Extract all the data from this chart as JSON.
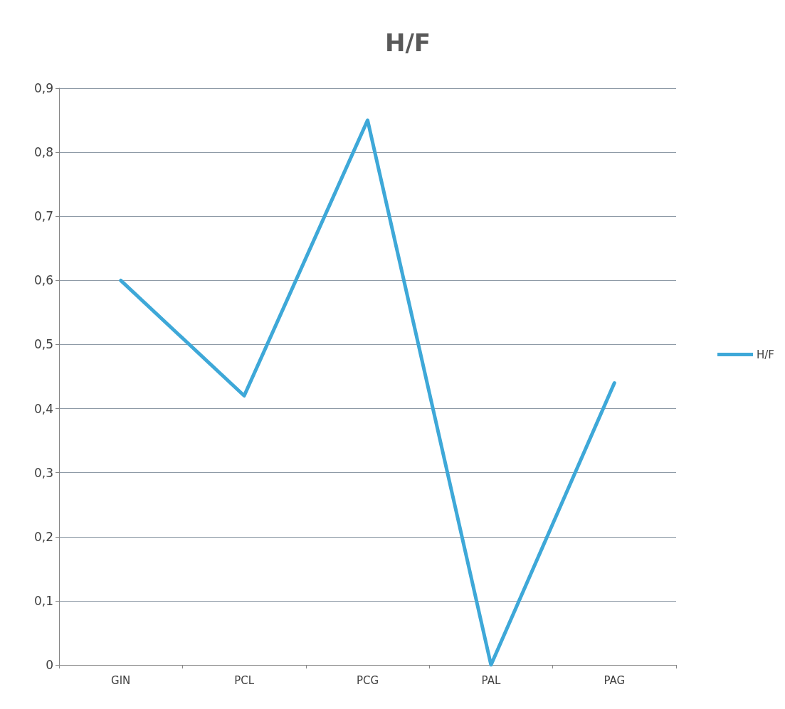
{
  "chart_data": {
    "type": "line",
    "title": "H/F",
    "categories": [
      "GIN",
      "PCL",
      "PCG",
      "PAL",
      "PAG"
    ],
    "series": [
      {
        "name": "H/F",
        "color": "#3ea8d8",
        "values": [
          0.6,
          0.42,
          0.85,
          0,
          0.44
        ]
      }
    ],
    "ylim": [
      0,
      0.9
    ],
    "yticks": [
      {
        "value": 0,
        "label": "0"
      },
      {
        "value": 0.1,
        "label": "0,1"
      },
      {
        "value": 0.2,
        "label": "0,2"
      },
      {
        "value": 0.3,
        "label": "0,3"
      },
      {
        "value": 0.4,
        "label": "0,4"
      },
      {
        "value": 0.5,
        "label": "0,5"
      },
      {
        "value": 0.6,
        "label": "0,6"
      },
      {
        "value": 0.7,
        "label": "0,7"
      },
      {
        "value": 0.8,
        "label": "0,8"
      },
      {
        "value": 0.9,
        "label": "0,9"
      }
    ],
    "grid": "y",
    "legend": "right",
    "marker": "none",
    "line_style": "solid"
  }
}
